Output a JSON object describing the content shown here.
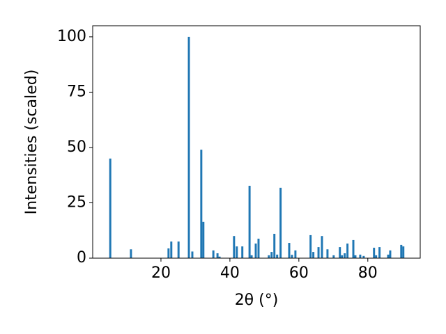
{
  "chart_data": {
    "type": "bar",
    "xlabel": "2θ (°)",
    "ylabel": "Intensities (scaled)",
    "color": "#1f77b4",
    "x": [
      5.3,
      11.3,
      22.2,
      23.0,
      25.1,
      28.1,
      29.1,
      31.7,
      32.3,
      35.2,
      36.4,
      37.0,
      41.2,
      42.0,
      43.6,
      45.7,
      46.3,
      47.5,
      48.3,
      51.3,
      52.1,
      52.9,
      53.7,
      54.7,
      57.2,
      58.0,
      59.0,
      63.4,
      64.2,
      65.7,
      66.7,
      68.3,
      70.1,
      71.9,
      72.5,
      73.3,
      74.1,
      75.8,
      76.4,
      77.8,
      78.8,
      81.8,
      82.4,
      83.4,
      85.9,
      86.5,
      89.7,
      90.3
    ],
    "values": [
      45,
      4,
      4.4,
      7.5,
      7.5,
      100,
      3,
      49,
      16.4,
      3.5,
      2.2,
      0.7,
      10,
      5.3,
      5.3,
      32.7,
      1.3,
      6.6,
      8.8,
      1.3,
      2.8,
      11,
      1.6,
      31.8,
      6.9,
      1.5,
      3.5,
      10.4,
      2.8,
      5,
      10,
      4,
      1.3,
      5,
      1.3,
      2.2,
      6.6,
      8.2,
      1.3,
      1.6,
      1,
      4.7,
      1.3,
      5,
      1.6,
      3.5,
      6,
      5.3
    ],
    "xlim": [
      0.2,
      95.2
    ],
    "ylim": [
      0,
      105
    ],
    "xticks": [
      20,
      40,
      60,
      80
    ],
    "yticks": [
      0,
      25,
      50,
      75,
      100
    ]
  }
}
